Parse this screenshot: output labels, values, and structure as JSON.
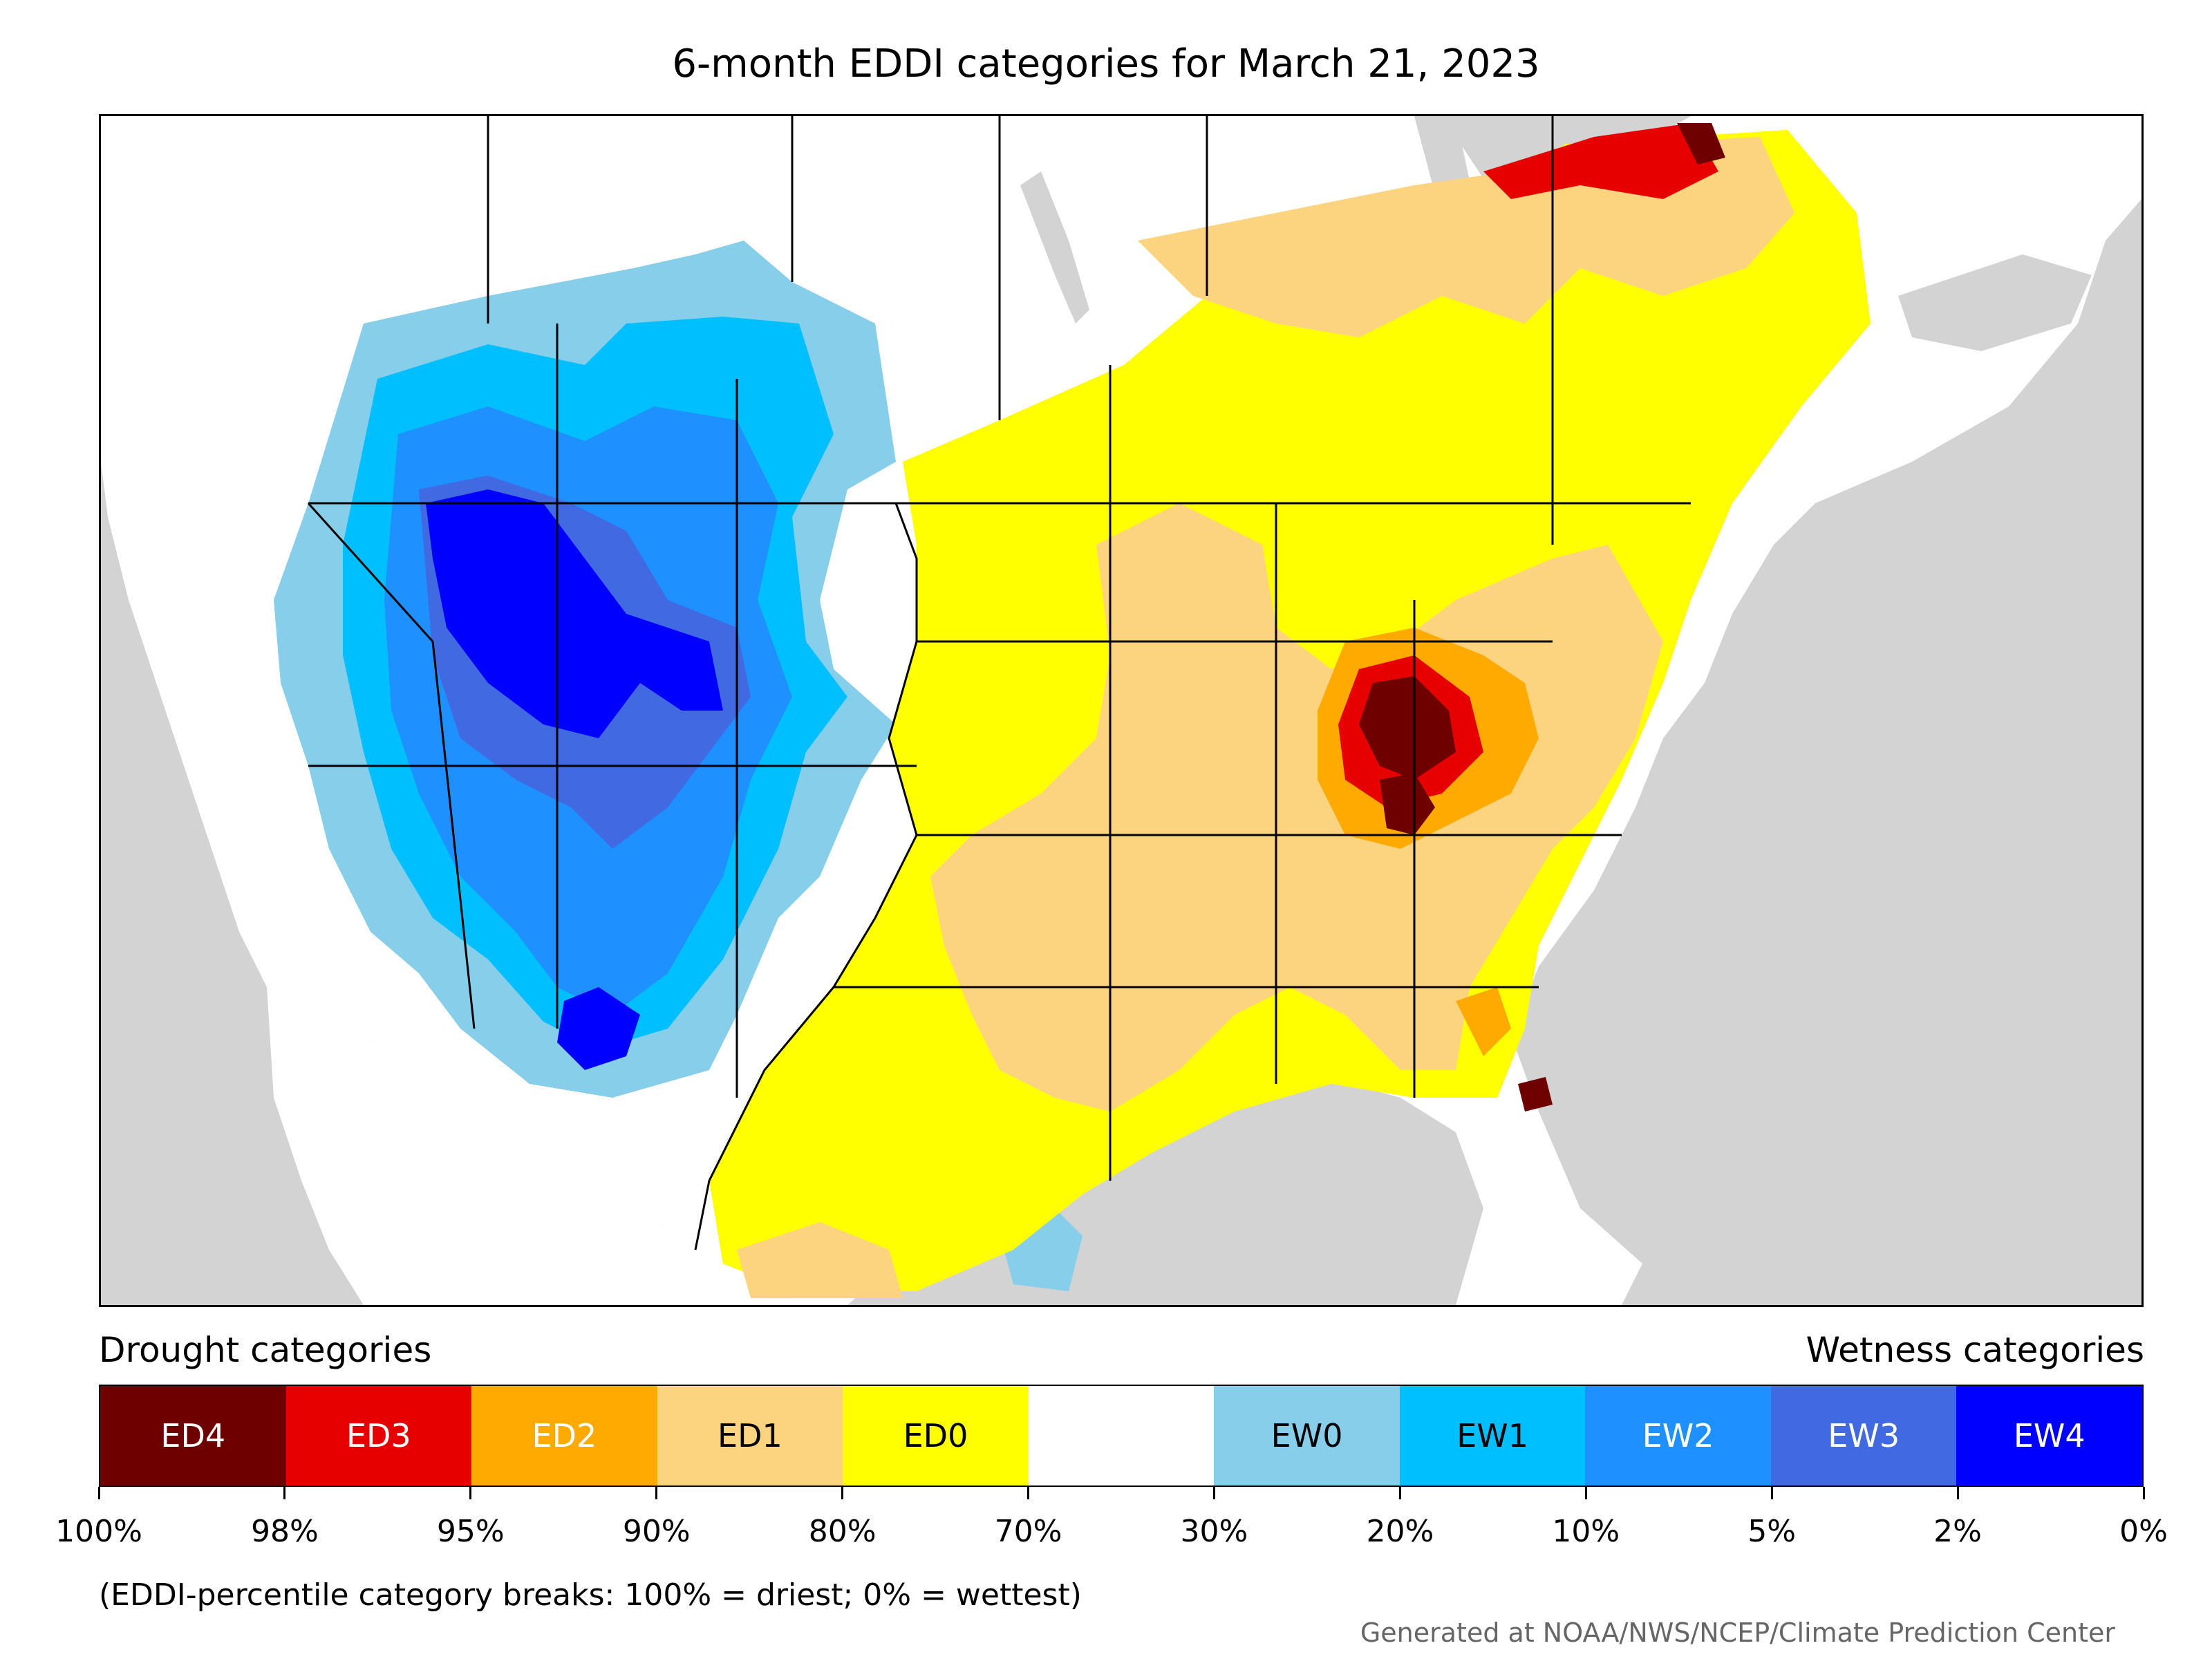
{
  "title": "6-month EDDI categories for March 21, 2023",
  "legend": {
    "drought_heading": "Drought categories",
    "wetness_heading": "Wetness categories",
    "categories": [
      {
        "label": "ED4",
        "color": "#6e0000",
        "text_color": "#ffffff"
      },
      {
        "label": "ED3",
        "color": "#e60000",
        "text_color": "#ffffff"
      },
      {
        "label": "ED2",
        "color": "#ffaa00",
        "text_color": "#ffffff"
      },
      {
        "label": "ED1",
        "color": "#fcd37f",
        "text_color": "#000000"
      },
      {
        "label": "ED0",
        "color": "#ffff00",
        "text_color": "#000000"
      },
      {
        "label": "",
        "color": "#ffffff",
        "text_color": "#000000"
      },
      {
        "label": "EW0",
        "color": "#87ceeb",
        "text_color": "#000000"
      },
      {
        "label": "EW1",
        "color": "#00bfff",
        "text_color": "#000000"
      },
      {
        "label": "EW2",
        "color": "#1e90ff",
        "text_color": "#ffffff"
      },
      {
        "label": "EW3",
        "color": "#4169e1",
        "text_color": "#ffffff"
      },
      {
        "label": "EW4",
        "color": "#0000ff",
        "text_color": "#ffffff"
      }
    ],
    "ticks": [
      "100%",
      "98%",
      "95%",
      "90%",
      "80%",
      "70%",
      "30%",
      "20%",
      "10%",
      "5%",
      "2%",
      "0%"
    ]
  },
  "note": "(EDDI-percentile category breaks: 100% = driest; 0% = wettest)",
  "credit": "Generated at NOAA/NWS/NCEP/Climate Prediction Center",
  "map": {
    "ocean_color": "#d3d3d3",
    "land_color": "#ffffff",
    "boundary_color": "#000000"
  }
}
